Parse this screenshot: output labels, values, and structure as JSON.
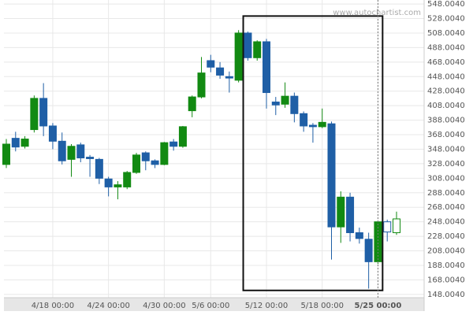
{
  "chart_data": {
    "type": "candlestick",
    "watermark": "www.autochartist.com",
    "categories": [
      null,
      null,
      null,
      null,
      null,
      "4/18 00:00",
      null,
      null,
      null,
      null,
      null,
      "4/24 00:00",
      null,
      null,
      null,
      null,
      null,
      "4/30 00:00",
      null,
      null,
      null,
      null,
      "5/6 00:00",
      null,
      null,
      null,
      null,
      null,
      "5/12 00:00",
      null,
      null,
      null,
      null,
      null,
      "5/18 00:00",
      null,
      null,
      null,
      null,
      null,
      "5/25 00:00",
      null,
      null
    ],
    "open": [
      327,
      363,
      352,
      375,
      418,
      380,
      359,
      334,
      354,
      337,
      334,
      307,
      296,
      296,
      316,
      343,
      332,
      327,
      358,
      352,
      401,
      420,
      470,
      460,
      448,
      443,
      508,
      474,
      496,
      413,
      410,
      421,
      397,
      381,
      379,
      383,
      241,
      282,
      233,
      224,
      193,
      248,
      233
    ],
    "high": [
      362,
      372,
      366,
      422,
      439,
      384,
      371,
      355,
      357,
      340,
      336,
      310,
      304,
      318,
      343,
      345,
      334,
      358,
      362,
      380,
      422,
      475,
      478,
      468,
      455,
      512,
      510,
      498,
      500,
      420,
      440,
      426,
      400,
      384,
      404,
      386,
      290,
      288,
      240,
      233,
      249,
      251,
      262
    ],
    "low": [
      322,
      345,
      349,
      371,
      366,
      348,
      327,
      310,
      330,
      310,
      300,
      283,
      279,
      293,
      314,
      319,
      322,
      326,
      346,
      350,
      392,
      418,
      454,
      445,
      426,
      440,
      470,
      470,
      404,
      395,
      405,
      385,
      372,
      357,
      377,
      196,
      219,
      221,
      218,
      156,
      190,
      221,
      230
    ],
    "close": [
      355,
      351,
      362,
      418,
      380,
      359,
      332,
      352,
      336,
      335,
      308,
      296,
      299,
      316,
      340,
      332,
      327,
      357,
      352,
      379,
      420,
      453,
      461,
      450,
      446,
      508,
      474,
      496,
      426,
      409,
      421,
      397,
      380,
      379,
      385,
      241,
      282,
      233,
      225,
      193,
      248,
      234,
      252
    ],
    "up_color": "#128a12",
    "down_color": "#1f5fa6",
    "hollow_last": 2,
    "pattern_box": {
      "x": [
        25.5,
        40.5
      ],
      "y": [
        153.5,
        531.4
      ]
    },
    "now_index": 40,
    "ylim": [
      143.5,
      553.5
    ],
    "yticks": [
      {
        "value": 148.004,
        "label": "148.0040"
      },
      {
        "value": 168.004,
        "label": "168.0040"
      },
      {
        "value": 188.004,
        "label": "188.0040"
      },
      {
        "value": 208.004,
        "label": "208.0040"
      },
      {
        "value": 228.004,
        "label": "228.0040"
      },
      {
        "value": 248.004,
        "label": "248.0040"
      },
      {
        "value": 268.004,
        "label": "268.0040"
      },
      {
        "value": 288.004,
        "label": "288.0040"
      },
      {
        "value": 308.004,
        "label": "308.0040"
      },
      {
        "value": 328.004,
        "label": "328.0040"
      },
      {
        "value": 348.004,
        "label": "348.0040"
      },
      {
        "value": 368.004,
        "label": "368.0040"
      },
      {
        "value": 388.004,
        "label": "388.0040"
      },
      {
        "value": 408.004,
        "label": "408.0040"
      },
      {
        "value": 428.004,
        "label": "428.0040"
      },
      {
        "value": 448.004,
        "label": "448.0040"
      },
      {
        "value": 468.004,
        "label": "468.0040"
      },
      {
        "value": 488.004,
        "label": "488.0040"
      },
      {
        "value": 508.004,
        "label": "508.0040"
      },
      {
        "value": 528.004,
        "label": "528.0040"
      },
      {
        "value": 548.004,
        "label": "548.0040"
      }
    ],
    "grid": true
  }
}
